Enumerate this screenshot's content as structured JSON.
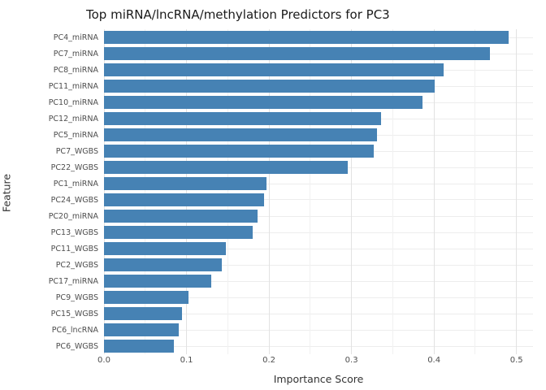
{
  "chart_data": {
    "type": "bar",
    "orientation": "horizontal",
    "title": "Top miRNA/lncRNA/methylation Predictors for PC3",
    "xlabel": "Importance Score",
    "ylabel": "Feature",
    "bar_color": "#4682B4",
    "categories": [
      "PC4_miRNA",
      "PC7_miRNA",
      "PC8_miRNA",
      "PC11_miRNA",
      "PC10_miRNA",
      "PC12_miRNA",
      "PC5_miRNA",
      "PC7_WGBS",
      "PC22_WGBS",
      "PC1_miRNA",
      "PC24_WGBS",
      "PC20_miRNA",
      "PC13_WGBS",
      "PC11_WGBS",
      "PC2_WGBS",
      "PC17_miRNA",
      "PC9_WGBS",
      "PC15_WGBS",
      "PC6_lncRNA",
      "PC6_WGBS"
    ],
    "values": [
      0.49,
      0.468,
      0.412,
      0.401,
      0.386,
      0.336,
      0.331,
      0.327,
      0.295,
      0.197,
      0.194,
      0.186,
      0.18,
      0.148,
      0.143,
      0.13,
      0.102,
      0.095,
      0.091,
      0.085
    ],
    "x_ticks": [
      0.0,
      0.1,
      0.2,
      0.3,
      0.4,
      0.5
    ],
    "x_tick_labels": [
      "0.0",
      "0.1",
      "0.2",
      "0.3",
      "0.4",
      "0.5"
    ],
    "axis_max": 0.52,
    "xlim": [
      0,
      0.5
    ],
    "grid": true,
    "legend": false
  }
}
